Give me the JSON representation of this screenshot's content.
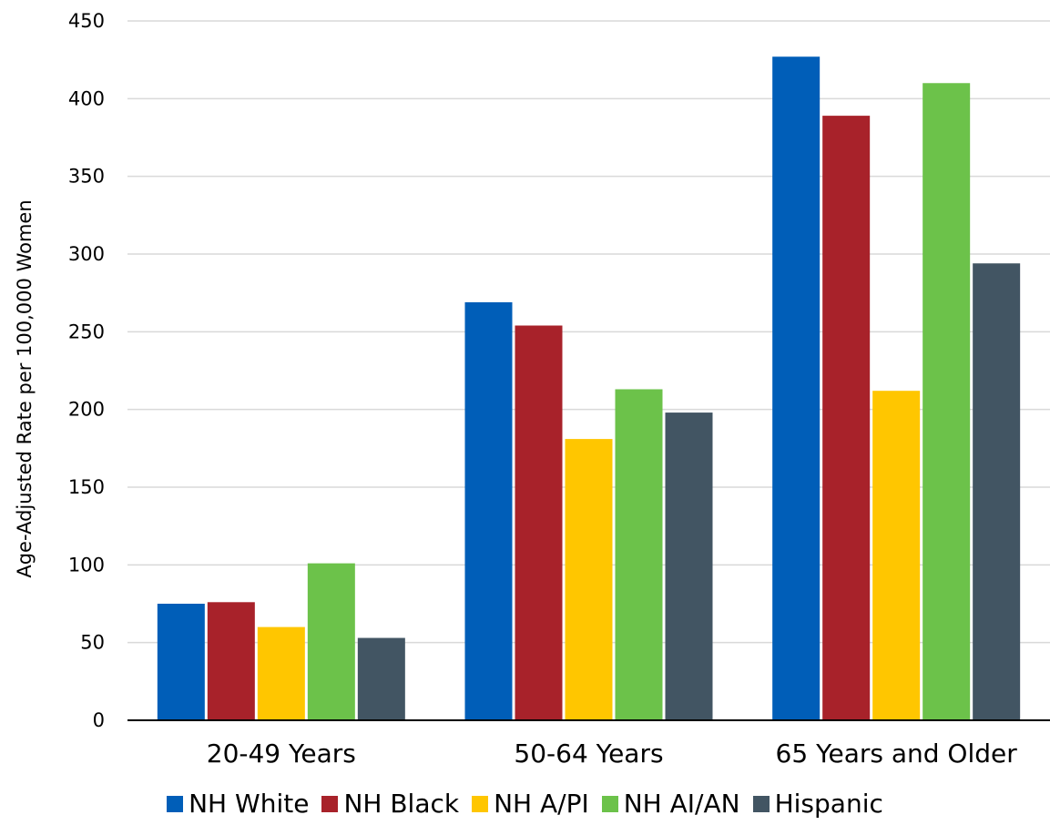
{
  "chart_data": {
    "type": "bar",
    "categories": [
      "20-49 Years",
      "50-64 Years",
      "65 Years and Older"
    ],
    "series": [
      {
        "name": "NH White",
        "color": "#005EB8",
        "values": [
          75,
          269,
          427
        ]
      },
      {
        "name": "NH Black",
        "color": "#A8222A",
        "values": [
          76,
          254,
          389
        ]
      },
      {
        "name": "NH A/PI",
        "color": "#FFC600",
        "values": [
          60,
          181,
          212
        ]
      },
      {
        "name": "NH AI/AN",
        "color": "#6CC24A",
        "values": [
          101,
          213,
          410
        ]
      },
      {
        "name": "Hispanic",
        "color": "#425563",
        "values": [
          53,
          198,
          294
        ]
      }
    ],
    "title": "",
    "xlabel": "",
    "ylabel": "Age-Adjusted Rate per 100,000 Women",
    "ylim": [
      0,
      450
    ],
    "yticks": [
      0,
      50,
      100,
      150,
      200,
      250,
      300,
      350,
      400,
      450
    ],
    "grid": true,
    "legend_position": "bottom"
  }
}
